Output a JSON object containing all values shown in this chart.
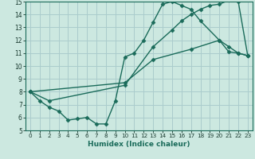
{
  "xlabel": "Humidex (Indice chaleur)",
  "xlim": [
    -0.5,
    23.5
  ],
  "ylim": [
    5,
    15
  ],
  "yticks": [
    5,
    6,
    7,
    8,
    9,
    10,
    11,
    12,
    13,
    14,
    15
  ],
  "xticks": [
    0,
    1,
    2,
    3,
    4,
    5,
    6,
    7,
    8,
    9,
    10,
    11,
    12,
    13,
    14,
    15,
    16,
    17,
    18,
    19,
    20,
    21,
    22,
    23
  ],
  "bg_color": "#cce8e0",
  "grid_color": "#aacccc",
  "line_color": "#1a6b5a",
  "line1_x": [
    0,
    1,
    2,
    3,
    4,
    5,
    6,
    7,
    8,
    9,
    10,
    11,
    12,
    13,
    14,
    15,
    16,
    17,
    18,
    20,
    21,
    22,
    23
  ],
  "line1_y": [
    8.0,
    7.3,
    6.8,
    6.5,
    5.8,
    5.9,
    6.0,
    5.5,
    5.5,
    7.3,
    10.7,
    11.0,
    12.0,
    13.4,
    14.8,
    15.0,
    14.7,
    14.4,
    13.5,
    12.0,
    11.1,
    11.0,
    10.8
  ],
  "line2_x": [
    0,
    2,
    10,
    13,
    15,
    16,
    17,
    18,
    19,
    20,
    21,
    22,
    23
  ],
  "line2_y": [
    8.0,
    7.3,
    8.5,
    11.5,
    12.8,
    13.5,
    14.0,
    14.4,
    14.7,
    14.8,
    15.1,
    15.0,
    10.8
  ],
  "line3_x": [
    0,
    10,
    13,
    17,
    20,
    21,
    22,
    23
  ],
  "line3_y": [
    8.0,
    8.7,
    10.5,
    11.3,
    12.0,
    11.5,
    11.0,
    10.8
  ],
  "marker": "D",
  "markersize": 2.5,
  "linewidth": 1.0
}
